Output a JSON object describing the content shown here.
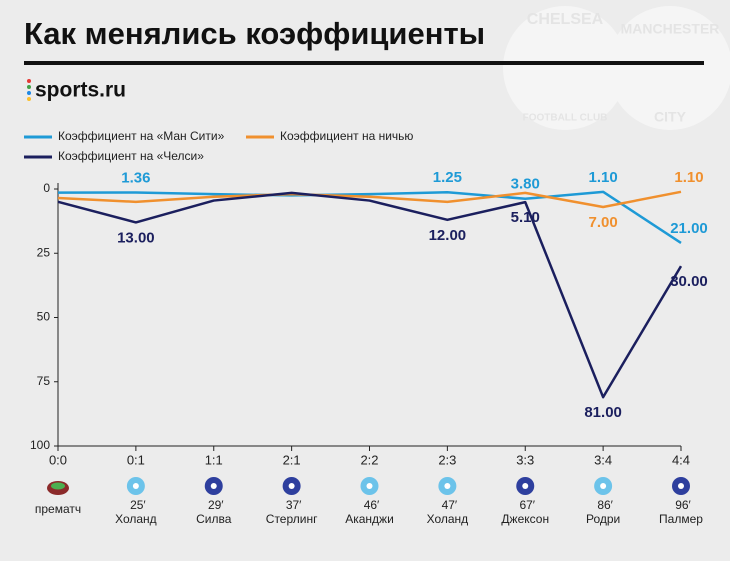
{
  "chart_data": {
    "type": "line",
    "title": "Как менялись коэффициенты",
    "source": "sports.ru",
    "badges": [
      {
        "top": "CHELSEA",
        "bottom": "FOOTBALL CLUB"
      },
      {
        "top": "MANCHESTER",
        "bottom": "CITY"
      }
    ],
    "categories": [
      "0:0",
      "0:1",
      "1:1",
      "2:1",
      "2:2",
      "2:3",
      "3:3",
      "3:4",
      "4:4"
    ],
    "events": [
      {
        "label": "прематч"
      },
      {
        "minute": "25′",
        "player": "Холанд"
      },
      {
        "minute": "29′",
        "player": "Силва"
      },
      {
        "minute": "37′",
        "player": "Стерлинг"
      },
      {
        "minute": "46′",
        "player": "Аканджи"
      },
      {
        "minute": "47′",
        "player": "Холанд"
      },
      {
        "minute": "67′",
        "player": "Джексон"
      },
      {
        "minute": "86′",
        "player": "Родри"
      },
      {
        "minute": "96′",
        "player": "Палмер"
      }
    ],
    "event_teams": [
      "stadium",
      "city",
      "chelsea",
      "chelsea",
      "city",
      "city",
      "chelsea",
      "city",
      "chelsea"
    ],
    "series": [
      {
        "name": "Коэффициент на «Ман Сити»",
        "color": "#1e9ad6",
        "values": [
          1.4,
          1.36,
          2,
          2.5,
          2,
          1.25,
          3.8,
          1.1,
          21
        ],
        "value_labels": [
          null,
          "1.36",
          null,
          null,
          null,
          "1.25",
          "3.80",
          "1.10",
          "21.00"
        ],
        "label_side": [
          null,
          "above",
          null,
          null,
          null,
          "above",
          "above",
          "above",
          "above"
        ]
      },
      {
        "name": "Коэффициент на ничью",
        "color": "#f0902e",
        "values": [
          3.5,
          5,
          3,
          2,
          3,
          5,
          1.5,
          7,
          1.1
        ],
        "value_labels": [
          null,
          null,
          null,
          null,
          null,
          null,
          null,
          "7.00",
          "1.10"
        ],
        "label_side": [
          null,
          null,
          null,
          null,
          null,
          null,
          null,
          "below",
          "above"
        ]
      },
      {
        "name": "Коэффициент на «Челси»",
        "color": "#1b1f5e",
        "values": [
          5,
          13,
          4.5,
          1.5,
          4.5,
          12,
          5.1,
          81,
          30
        ],
        "value_labels": [
          null,
          "13.00",
          null,
          null,
          null,
          "12.00",
          "5.10",
          "81.00",
          "30.00"
        ],
        "label_side": [
          null,
          "below",
          null,
          null,
          null,
          "below",
          "below",
          "below",
          "below"
        ]
      }
    ],
    "ylim": [
      0,
      100
    ],
    "y_inverted": true,
    "yticks": [
      0,
      25,
      50,
      75,
      100
    ]
  }
}
